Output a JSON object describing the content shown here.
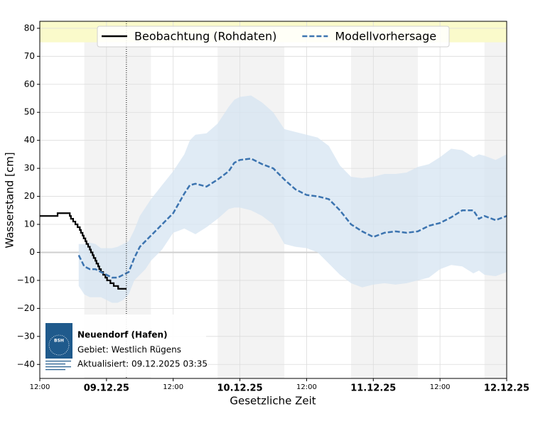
{
  "chart_data": {
    "type": "line",
    "xlabel": "Gesetzliche Zeit",
    "ylabel": "Wasserstand [cm]",
    "xlim": [
      0,
      84
    ],
    "ylim": [
      -45,
      82.5
    ],
    "xticks": [
      {
        "value": 0,
        "label": "12:00"
      },
      {
        "value": 12,
        "label": "09.12.25"
      },
      {
        "value": 24,
        "label": "12:00"
      },
      {
        "value": 36,
        "label": "10.12.25"
      },
      {
        "value": 48,
        "label": "12:00"
      },
      {
        "value": 60,
        "label": "11.12.25"
      },
      {
        "value": 72,
        "label": "12:00"
      },
      {
        "value": 84,
        "label": "12.12.25"
      }
    ],
    "yticks": [
      {
        "value": -40,
        "label": "−40"
      },
      {
        "value": -30,
        "label": "−30"
      },
      {
        "value": -20,
        "label": "−20"
      },
      {
        "value": -10,
        "label": "−10"
      },
      0,
      10,
      20,
      30,
      40,
      50,
      60,
      70,
      80
    ],
    "grid": true,
    "legend": "top",
    "night_shading": [
      [
        8,
        20
      ],
      [
        32,
        44
      ],
      [
        56,
        68
      ],
      [
        80,
        84
      ]
    ],
    "warning_band": [
      75,
      82.5
    ],
    "now": 15.58,
    "series": [
      {
        "name": "Beobachtung (Rohdaten)",
        "color": "#000000",
        "style": "step",
        "x": [
          0,
          3.2,
          5.4,
          5.6,
          6.0,
          6.4,
          6.8,
          7.2,
          7.4,
          7.7,
          7.9,
          8.2,
          8.4,
          8.7,
          9.0,
          9.2,
          9.5,
          9.7,
          10.0,
          10.2,
          10.5,
          10.7,
          11.0,
          11.4,
          11.8,
          12.1,
          12.7,
          13.3,
          14.1,
          15.6
        ],
        "values": [
          13,
          14,
          13,
          12,
          11,
          10,
          9,
          8,
          7,
          6,
          5,
          4,
          3,
          2,
          1,
          0,
          -1,
          -2,
          -3,
          -4,
          -5,
          -6,
          -7,
          -8,
          -9,
          -10,
          -11,
          -12,
          -13,
          -13
        ]
      },
      {
        "name": "Modellvorhersage",
        "color": "#3c74b0",
        "style": "dashed",
        "band_color": "#d6e4f1",
        "x": [
          7,
          8,
          9,
          10,
          11,
          12,
          13,
          14,
          15,
          16,
          17,
          18,
          19,
          20,
          22,
          24,
          26,
          27,
          28,
          30,
          32,
          34,
          35,
          36,
          38,
          40,
          42,
          44,
          46,
          48,
          50,
          52,
          54,
          56,
          58,
          60,
          62,
          64,
          66,
          68,
          70,
          72,
          74,
          76,
          78,
          79,
          80,
          82,
          84
        ],
        "values": [
          -1,
          -5,
          -6,
          -6,
          -7,
          -8,
          -9,
          -9,
          -8,
          -7,
          -2,
          2,
          4,
          6,
          10,
          14,
          21,
          24,
          24.5,
          23.5,
          26,
          29,
          32,
          33,
          33.5,
          31.5,
          30,
          26,
          22.5,
          20.5,
          20,
          19,
          15,
          10,
          7.5,
          5.5,
          7,
          7.5,
          7,
          7.5,
          9.5,
          10.5,
          12.5,
          15,
          15,
          12,
          13,
          11.5,
          13
        ],
        "upper": [
          3,
          3,
          3.5,
          3,
          1.5,
          1.5,
          1.5,
          2,
          3,
          4,
          8,
          13,
          16,
          19,
          24,
          29,
          35,
          40,
          42,
          42.5,
          46,
          52,
          54.5,
          55.5,
          56,
          53.5,
          50,
          44,
          43,
          42,
          41,
          38,
          31,
          27,
          26.5,
          27,
          28,
          28,
          28.5,
          30.5,
          31.5,
          34,
          37,
          36.5,
          34,
          35,
          34.5,
          33,
          35
        ],
        "lower": [
          -12,
          -15,
          -16,
          -16,
          -16,
          -17,
          -18,
          -18,
          -17,
          -15,
          -10,
          -8,
          -6,
          -3,
          1,
          7,
          8.5,
          7.5,
          6.5,
          9,
          12,
          15.5,
          16,
          16,
          15,
          13,
          10,
          3,
          2,
          1.5,
          0,
          -4,
          -8,
          -11,
          -12.5,
          -11.5,
          -11,
          -11.5,
          -11,
          -10,
          -9,
          -6,
          -4.5,
          -5,
          -7.5,
          -6.5,
          -8,
          -8.5,
          -7
        ]
      }
    ],
    "info": {
      "logo_text": "BSH",
      "station": "Neuendorf (Hafen)",
      "region": "Gebiet: Westlich Rügens",
      "updated": "Aktualisiert: 09.12.2025 03:35"
    }
  }
}
